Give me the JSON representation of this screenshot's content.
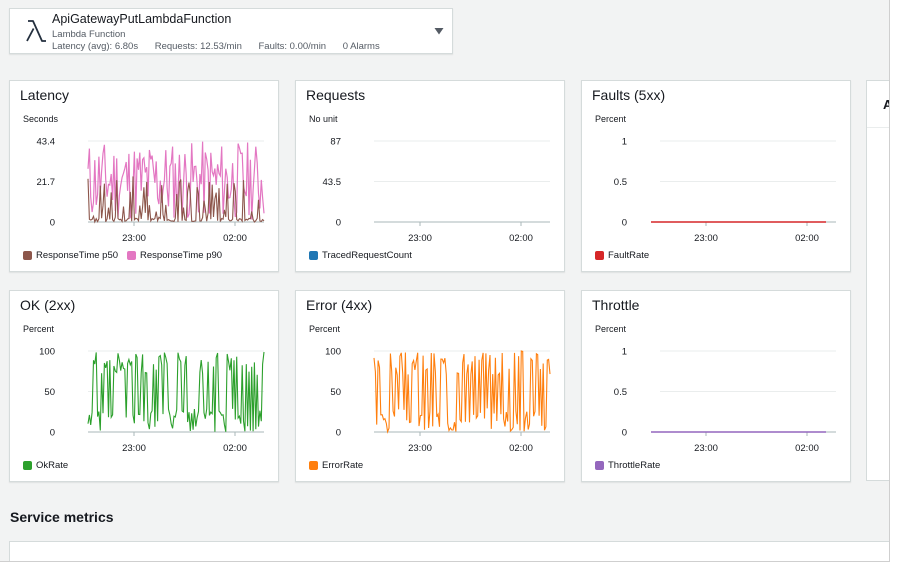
{
  "header": {
    "title": "ApiGatewayPutLambdaFunction",
    "subtitle": "Lambda Function",
    "stats": {
      "latency": "Latency (avg): 6.80s",
      "requests": "Requests: 12.53/min",
      "faults": "Faults: 0.00/min",
      "alarms": "0 Alarms"
    },
    "logo_icon": "lambda-icon",
    "dropdown_icon": "caret-down-icon"
  },
  "side_panel": {
    "letter": "A"
  },
  "section": {
    "title": "Service metrics"
  },
  "cards": [
    {
      "id": "latency",
      "title": "Latency",
      "unit": "Seconds",
      "yticks": [
        "43.4",
        "21.7",
        "0"
      ],
      "xticks": [
        "23:00",
        "02:00"
      ],
      "legend": [
        {
          "label": "ResponseTime p50",
          "color": "#8c564b"
        },
        {
          "label": "ResponseTime p90",
          "color": "#e377c2"
        }
      ]
    },
    {
      "id": "requests",
      "title": "Requests",
      "unit": "No unit",
      "yticks": [
        "87",
        "43.5",
        "0"
      ],
      "xticks": [
        "23:00",
        "02:00"
      ],
      "legend": [
        {
          "label": "TracedRequestCount",
          "color": "#1f77b4"
        }
      ]
    },
    {
      "id": "faults",
      "title": "Faults (5xx)",
      "unit": "Percent",
      "yticks": [
        "1",
        "0.5",
        "0"
      ],
      "xticks": [
        "23:00",
        "02:00"
      ],
      "legend": [
        {
          "label": "FaultRate",
          "color": "#d62728"
        }
      ]
    },
    {
      "id": "ok",
      "title": "OK (2xx)",
      "unit": "Percent",
      "yticks": [
        "100",
        "50",
        "0"
      ],
      "xticks": [
        "23:00",
        "02:00"
      ],
      "legend": [
        {
          "label": "OkRate",
          "color": "#2ca02c"
        }
      ]
    },
    {
      "id": "error",
      "title": "Error (4xx)",
      "unit": "Percent",
      "yticks": [
        "100",
        "50",
        "0"
      ],
      "xticks": [
        "23:00",
        "02:00"
      ],
      "legend": [
        {
          "label": "ErrorRate",
          "color": "#ff7f0e"
        }
      ]
    },
    {
      "id": "throttle",
      "title": "Throttle",
      "unit": "Percent",
      "yticks": [
        "1",
        "0.5",
        "0"
      ],
      "xticks": [
        "23:00",
        "02:00"
      ],
      "legend": [
        {
          "label": "ThrottleRate",
          "color": "#9467bd"
        }
      ]
    }
  ]
}
